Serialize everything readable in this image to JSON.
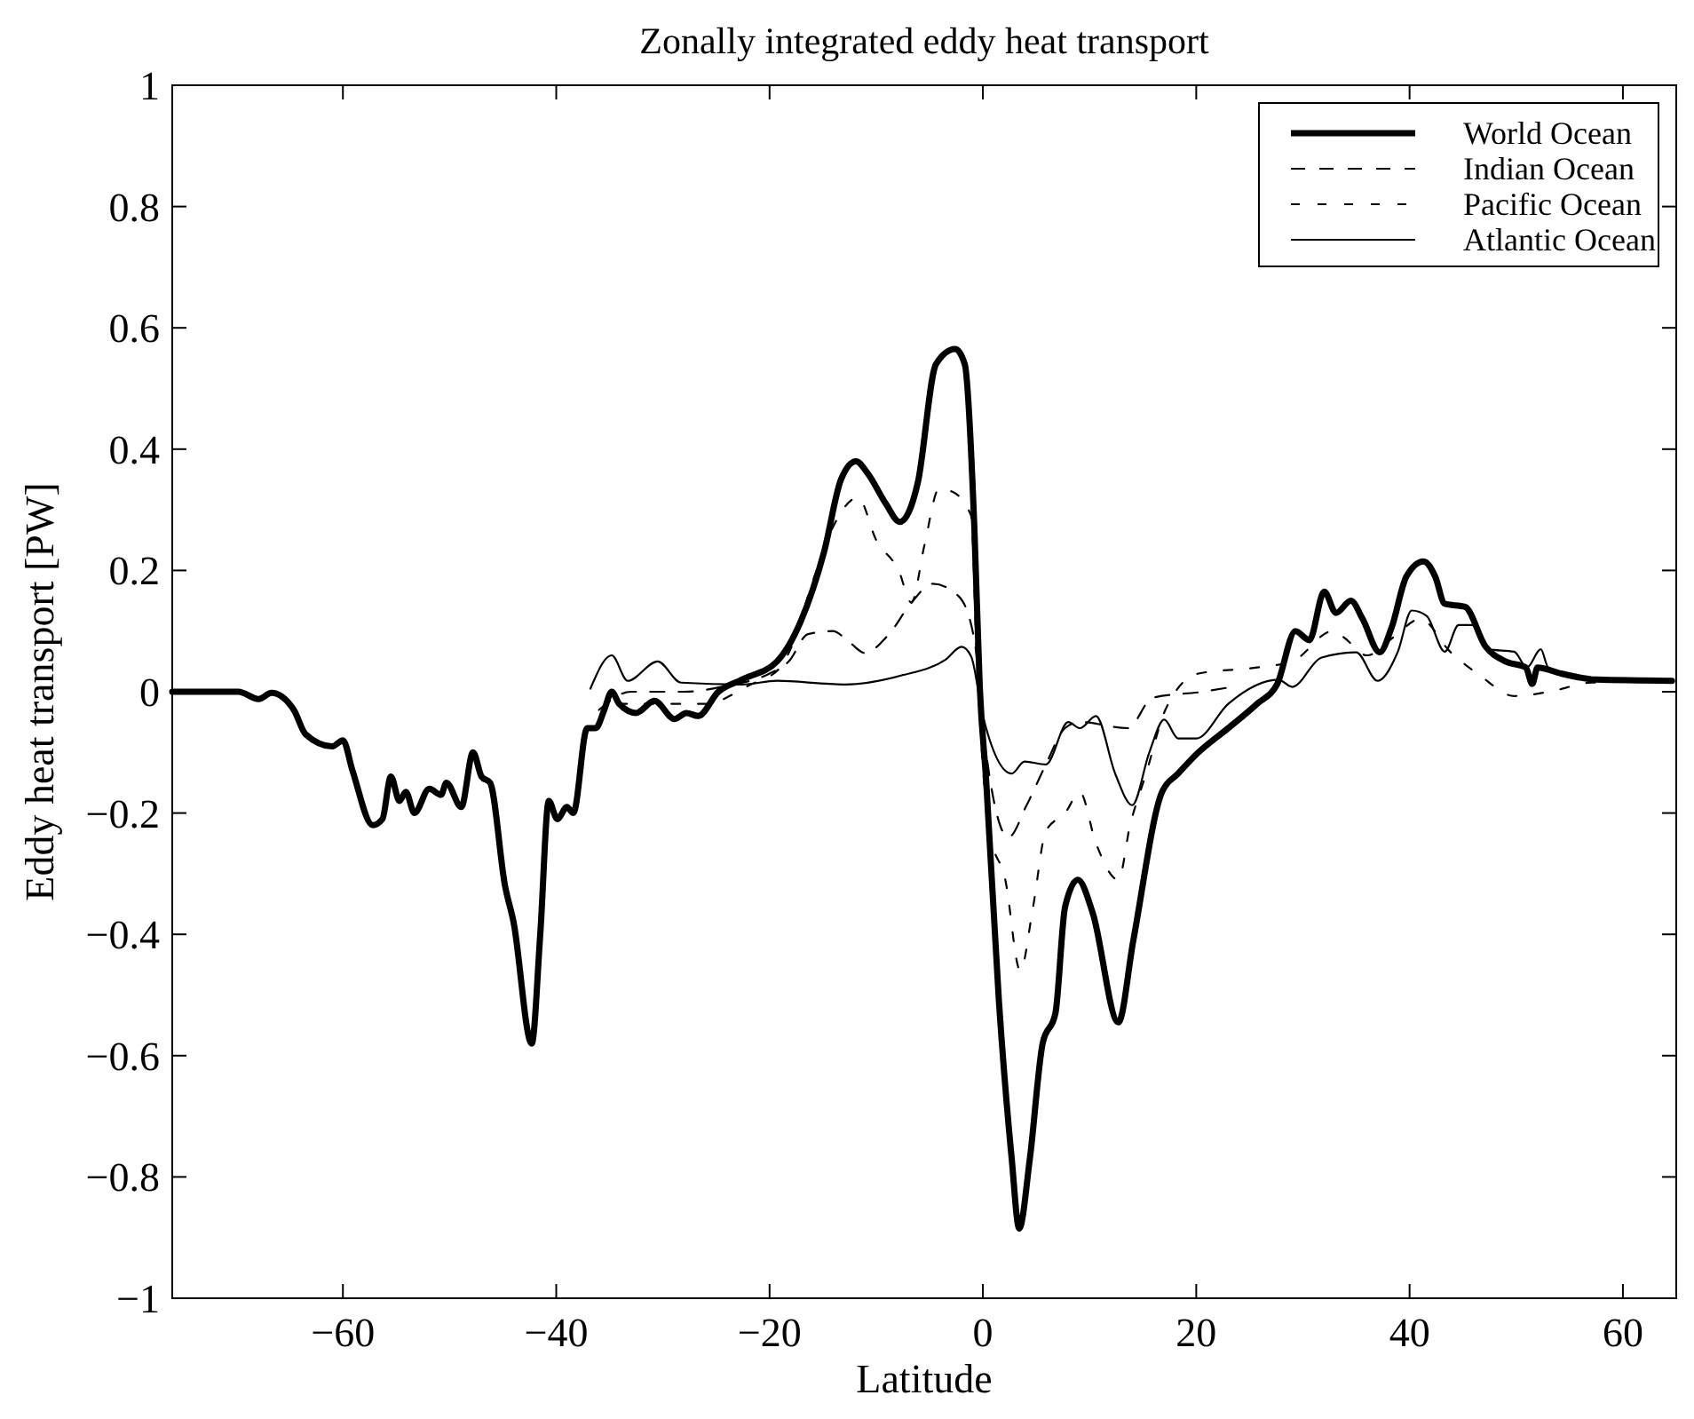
{
  "chart_data": {
    "type": "line",
    "title": "Zonally integrated eddy heat transport",
    "xlabel": "Latitude",
    "ylabel": "Eddy heat transport [PW]",
    "xlim": [
      -76,
      65
    ],
    "ylim": [
      -1,
      1
    ],
    "xticks": [
      -60,
      -40,
      -20,
      0,
      20,
      40,
      60
    ],
    "yticks": [
      -1,
      -0.8,
      -0.6,
      -0.4,
      -0.2,
      0,
      0.2,
      0.4,
      0.6,
      0.8,
      1
    ],
    "grid": false,
    "legend": "top right",
    "series": [
      {
        "name": "World Ocean",
        "color": "#000000",
        "line_style": "solid",
        "x": [
          -76,
          -69.8,
          -67.9,
          -66.7,
          -64.6,
          -63.5,
          -61,
          -60,
          -59.1,
          -57.2,
          -56.3,
          -55.5,
          -54.7,
          -54.1,
          -53.3,
          -51.9,
          -50.8,
          -50.3,
          -48.9,
          -47.8,
          -47,
          -46.2,
          -44.8,
          -44,
          -42.3,
          -41.5,
          -40.7,
          -39.9,
          -39,
          -38.4,
          -37.1,
          -36.3,
          -35.5,
          -34.8,
          -34.1,
          -32.5,
          -30.8,
          -28.9,
          -27.8,
          -26.7,
          -24.8,
          -22.6,
          -19.3,
          -17.1,
          -14.9,
          -13.3,
          -11.9,
          -10.8,
          -9.1,
          -7.8,
          -6.1,
          -4.4,
          -2.6,
          -1.7,
          -0.8,
          -0.3,
          0.3,
          1.5,
          2.7,
          3.4,
          4.4,
          5.6,
          6.8,
          7.7,
          8.9,
          10.3,
          12.7,
          14.1,
          16.8,
          18.3,
          20.2,
          23,
          25.7,
          27.6,
          29.3,
          30.6,
          32,
          33.1,
          34.5,
          35.6,
          37.2,
          38.3,
          39.7,
          41.3,
          42.4,
          43.3,
          45.2,
          47.1,
          49,
          50.9,
          51.5,
          52,
          54.2,
          57.5,
          64.6
        ],
        "values": [
          0,
          0,
          -0.012,
          -0.002,
          -0.03,
          -0.07,
          -0.09,
          -0.08,
          -0.13,
          -0.22,
          -0.21,
          -0.14,
          -0.18,
          -0.165,
          -0.2,
          -0.16,
          -0.17,
          -0.15,
          -0.19,
          -0.1,
          -0.14,
          -0.15,
          -0.32,
          -0.38,
          -0.58,
          -0.4,
          -0.18,
          -0.21,
          -0.19,
          -0.2,
          -0.06,
          -0.06,
          -0.03,
          0,
          -0.02,
          -0.035,
          -0.015,
          -0.045,
          -0.035,
          -0.04,
          0,
          0.02,
          0.05,
          0.115,
          0.23,
          0.35,
          0.38,
          0.36,
          0.31,
          0.28,
          0.345,
          0.54,
          0.565,
          0.54,
          0.27,
          0.01,
          -0.145,
          -0.51,
          -0.77,
          -0.885,
          -0.77,
          -0.58,
          -0.53,
          -0.355,
          -0.31,
          -0.365,
          -0.545,
          -0.41,
          -0.165,
          -0.135,
          -0.1,
          -0.06,
          -0.02,
          0.013,
          0.1,
          0.085,
          0.165,
          0.13,
          0.15,
          0.12,
          0.065,
          0.105,
          0.19,
          0.215,
          0.19,
          0.145,
          0.14,
          0.075,
          0.05,
          0.04,
          0.013,
          0.04,
          0.03,
          0.02,
          0.018
        ]
      },
      {
        "name": "Indian Ocean",
        "color": "#000000",
        "line_style": "dashed",
        "x": [
          -36,
          -33,
          -28,
          -24,
          -20,
          -18.2,
          -16.4,
          -14.1,
          -12.4,
          -11.1,
          -8.8,
          -6.7,
          -4.7,
          -2.3,
          -0.8,
          0.3,
          2.4,
          4.1,
          5.9,
          7.7,
          9.1,
          13.6,
          15.9,
          20.6,
          24
        ],
        "values": [
          -0.03,
          0,
          0,
          0.01,
          0.03,
          0.05,
          0.095,
          0.1,
          0.08,
          0.064,
          0.095,
          0.147,
          0.178,
          0.158,
          0.085,
          -0.1,
          -0.24,
          -0.187,
          -0.12,
          -0.06,
          -0.05,
          -0.06,
          -0.01,
          0,
          0.01
        ]
      },
      {
        "name": "Pacific Ocean",
        "color": "#000000",
        "line_style": "dashed",
        "x": [
          -36,
          -34,
          -30,
          -26,
          -22,
          -19,
          -18.2,
          -15.8,
          -14.1,
          -11.7,
          -10,
          -7.9,
          -6.7,
          -5.5,
          -4.1,
          -2.9,
          -1.1,
          -0.6,
          0.6,
          2.1,
          3.5,
          4.7,
          5.9,
          7.7,
          9.1,
          10.6,
          12.7,
          13.8,
          15.3,
          17.1,
          20.2,
          25.7,
          29,
          32.8,
          33.8,
          36,
          38.5,
          41,
          43.8,
          46.6,
          49.8,
          53.1,
          57,
          64.6
        ],
        "values": [
          -0.05,
          -0.02,
          -0.02,
          -0.02,
          0.01,
          0.04,
          0.064,
          0.19,
          0.27,
          0.32,
          0.25,
          0.2,
          0.147,
          0.24,
          0.335,
          0.33,
          0.29,
          0.065,
          -0.23,
          -0.31,
          -0.46,
          -0.355,
          -0.23,
          -0.2,
          -0.166,
          -0.25,
          -0.31,
          -0.22,
          -0.135,
          -0.03,
          0.03,
          0.04,
          0.05,
          0.1,
          0.09,
          0.06,
          0.09,
          0.12,
          0.066,
          0.027,
          -0.007,
          0,
          0.015,
          0.018
        ]
      },
      {
        "name": "Atlantic Ocean",
        "color": "#000000",
        "line_style": "solid",
        "x": [
          -36.8,
          -34.8,
          -33.3,
          -30.5,
          -28.3,
          -22.6,
          -19.3,
          -14.4,
          -12.9,
          -7.6,
          -3.5,
          -2,
          -1.1,
          0,
          2.7,
          3.9,
          5.9,
          8,
          9.1,
          10.6,
          12.4,
          14,
          15.6,
          17,
          18.3,
          20,
          23,
          27.7,
          29,
          31.7,
          35,
          37,
          38.9,
          40.2,
          41.6,
          43.3,
          44.6,
          46,
          47.4,
          49.8,
          51,
          52.3,
          53,
          57.5,
          64.6
        ],
        "values": [
          0.005,
          0.06,
          0.018,
          0.05,
          0.015,
          0.012,
          0.018,
          0.013,
          0.012,
          0.027,
          0.053,
          0.074,
          0.058,
          -0.04,
          -0.135,
          -0.115,
          -0.12,
          -0.05,
          -0.06,
          -0.04,
          -0.135,
          -0.187,
          -0.1,
          -0.046,
          -0.077,
          -0.077,
          -0.02,
          0.02,
          0.008,
          0.056,
          0.065,
          0.018,
          0.066,
          0.134,
          0.125,
          0.066,
          0.11,
          0.11,
          0.07,
          0.066,
          0.04,
          0.07,
          0.04,
          0.02,
          0.018
        ]
      }
    ]
  }
}
